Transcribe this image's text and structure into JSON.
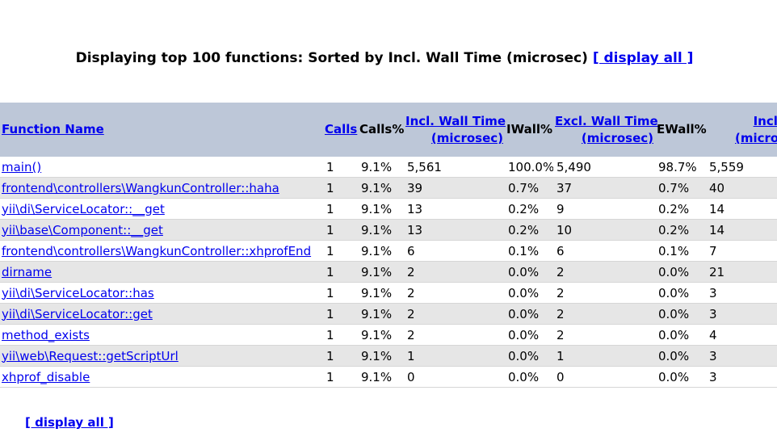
{
  "heading": {
    "text": "Displaying top 100 functions: Sorted by Incl. Wall Time (microsec)",
    "link": "[ display all ]"
  },
  "table": {
    "columns": [
      {
        "line1": "Function Name",
        "link": true
      },
      {
        "line1": "Calls",
        "link": true
      },
      {
        "line1": "Calls%",
        "link": false
      },
      {
        "line1": "Incl. Wall Time",
        "line2": "(microsec)",
        "link": true
      },
      {
        "line1": "IWall%",
        "link": false
      },
      {
        "line1": "Excl. Wall Time",
        "line2": "(microsec)",
        "link": true
      },
      {
        "line1": "EWall%",
        "link": false
      },
      {
        "line1": "Incl. CPU",
        "line2": "(microsecs)",
        "link": true
      }
    ],
    "rows": [
      [
        "main()",
        "1",
        "9.1%",
        "5,561",
        "100.0%",
        "5,490",
        "98.7%",
        "5,559"
      ],
      [
        "frontend\\controllers\\WangkunController::haha",
        "1",
        "9.1%",
        "39",
        "0.7%",
        "37",
        "0.7%",
        "40"
      ],
      [
        "yii\\di\\ServiceLocator::__get",
        "1",
        "9.1%",
        "13",
        "0.2%",
        "9",
        "0.2%",
        "14"
      ],
      [
        "yii\\base\\Component::__get",
        "1",
        "9.1%",
        "13",
        "0.2%",
        "10",
        "0.2%",
        "14"
      ],
      [
        "frontend\\controllers\\WangkunController::xhprofEnd",
        "1",
        "9.1%",
        "6",
        "0.1%",
        "6",
        "0.1%",
        "7"
      ],
      [
        "dirname",
        "1",
        "9.1%",
        "2",
        "0.0%",
        "2",
        "0.0%",
        "21"
      ],
      [
        "yii\\di\\ServiceLocator::has",
        "1",
        "9.1%",
        "2",
        "0.0%",
        "2",
        "0.0%",
        "3"
      ],
      [
        "yii\\di\\ServiceLocator::get",
        "1",
        "9.1%",
        "2",
        "0.0%",
        "2",
        "0.0%",
        "3"
      ],
      [
        "method_exists",
        "1",
        "9.1%",
        "2",
        "0.0%",
        "2",
        "0.0%",
        "4"
      ],
      [
        "yii\\web\\Request::getScriptUrl",
        "1",
        "9.1%",
        "1",
        "0.0%",
        "1",
        "0.0%",
        "3"
      ],
      [
        "xhprof_disable",
        "1",
        "9.1%",
        "0",
        "0.0%",
        "0",
        "0.0%",
        "3"
      ]
    ]
  },
  "footer_link": "[ display all ]"
}
